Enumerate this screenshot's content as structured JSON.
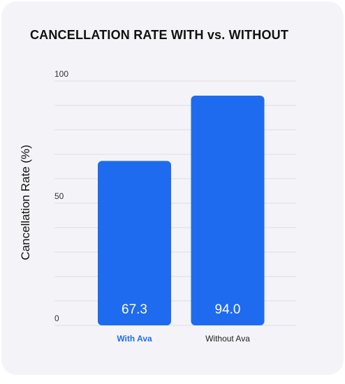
{
  "chart_data": {
    "type": "bar",
    "title": "CANCELLATION RATE WITH vs. WITHOUT",
    "ylabel": "Cancellation Rate (%)",
    "xlabel": "",
    "categories": [
      "With Ava",
      "Without Ava"
    ],
    "values": [
      67.3,
      94.0
    ],
    "value_labels": [
      "67.3",
      "94.0"
    ],
    "highlighted_category": "With Ava",
    "ylim": [
      0,
      100
    ],
    "yticks": [
      0,
      50,
      100
    ],
    "grid": true,
    "bar_color": "#1f6bf0",
    "highlight_label_color": "#1f6bf0"
  }
}
